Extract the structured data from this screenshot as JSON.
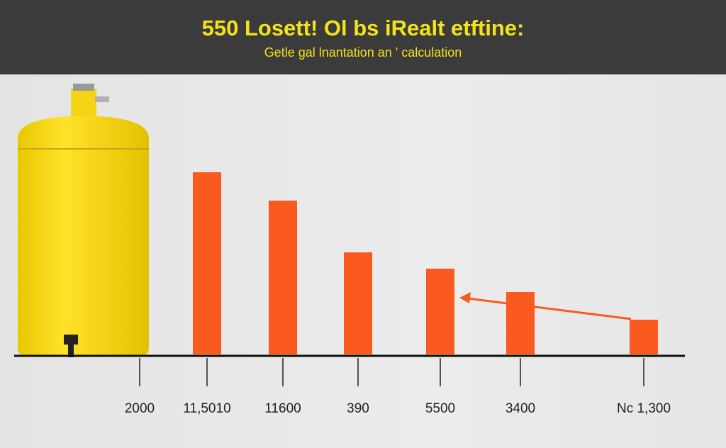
{
  "chart_data": {
    "type": "bar",
    "title": "550 Losett! Ol bs iRealt etftine:",
    "subtitle": "Getle gal lnantation an ' calculation",
    "categories": [
      "2000",
      "11,5010",
      "11600",
      "390",
      "5500",
      "3400",
      "Nc 1,300"
    ],
    "values": [
      null,
      257,
      217,
      144,
      121,
      88,
      49
    ],
    "color": "#fa5a1e"
  }
}
